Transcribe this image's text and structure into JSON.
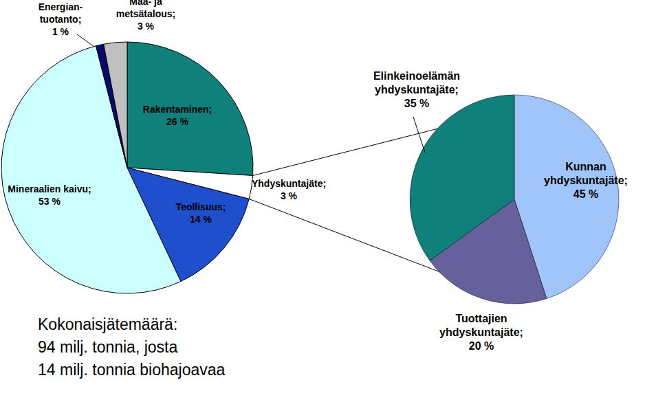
{
  "chart_data": [
    {
      "type": "pie",
      "categories": [
        "Rakentaminen;",
        "Yhdyskuntajäte;",
        "Teollisuus;",
        "Mineraalien kaivu;",
        "Energian-\ntuotanto;",
        "Maa- ja\nmetsätalous;"
      ],
      "values": [
        26,
        3,
        14,
        53,
        1,
        3
      ],
      "value_labels": [
        "26 %",
        "3 %",
        "14 %",
        "53 %",
        "1 %",
        "3 %"
      ],
      "colors": [
        "#10807a",
        "#ffffff",
        "#1f4fcc",
        "#ccffff",
        "#0a0a6e",
        "#c0c0c0"
      ],
      "data_labels": true,
      "annotations": [
        "Kokonaisjätemäärä:",
        "94 milj. tonnia, josta",
        "14 milj. tonnia biohajoavaa"
      ]
    },
    {
      "type": "pie",
      "categories": [
        "Kunnan\nyhdyskuntajäte;",
        "Tuottajien\nyhdyskuntajäte;",
        "Elinkeinoelämän\nyhdyskuntajäte;"
      ],
      "values": [
        45,
        20,
        35
      ],
      "value_labels": [
        "45 %",
        "20 %",
        "35 %"
      ],
      "colors": [
        "#9fc5fb",
        "#66609c",
        "#10807a"
      ],
      "data_labels": true
    }
  ]
}
